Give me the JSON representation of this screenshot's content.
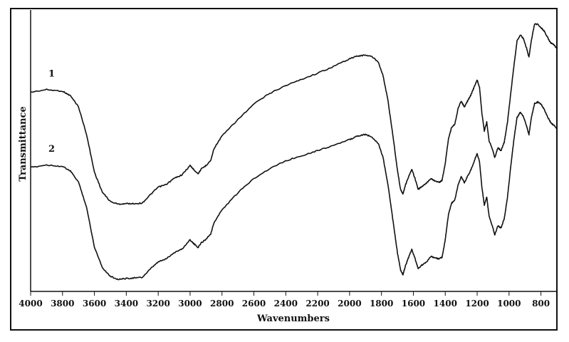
{
  "chart_data": {
    "type": "line",
    "title": "",
    "xlabel": "Wavenumbers",
    "ylabel": "Transmittance",
    "xlim": [
      4000,
      700
    ],
    "x_reversed": true,
    "xticks": [
      4000,
      3800,
      3600,
      3400,
      3200,
      3000,
      2800,
      2600,
      2400,
      2200,
      2000,
      1800,
      1600,
      1400,
      1200,
      1000,
      800
    ],
    "xtick_labels": [
      "4000",
      "3800",
      "3600",
      "3400",
      "3200",
      "3000",
      "2800",
      "2600",
      "2400",
      "2200",
      "2000",
      "1800",
      "1600",
      "1400",
      "1200",
      "1000",
      "800"
    ],
    "ylim": [
      0,
      100
    ],
    "grid": false,
    "legend": "none",
    "series": [
      {
        "name": "1",
        "color": "#111111",
        "points": [
          [
            4000,
            74.2
          ],
          [
            3900,
            75.2
          ],
          [
            3800,
            74.6
          ],
          [
            3750,
            72.8
          ],
          [
            3700,
            68.6
          ],
          [
            3650,
            58
          ],
          [
            3600,
            43.2
          ],
          [
            3550,
            35.4
          ],
          [
            3500,
            31.8
          ],
          [
            3450,
            30.8
          ],
          [
            3400,
            31
          ],
          [
            3350,
            31
          ],
          [
            3300,
            31.2
          ],
          [
            3250,
            34.4
          ],
          [
            3200,
            37.4
          ],
          [
            3150,
            38.4
          ],
          [
            3100,
            40.8
          ],
          [
            3050,
            42.2
          ],
          [
            3000,
            45.8
          ],
          [
            2980,
            44.4
          ],
          [
            2950,
            42.6
          ],
          [
            2930,
            44.4
          ],
          [
            2900,
            45.8
          ],
          [
            2870,
            47.8
          ],
          [
            2850,
            52.4
          ],
          [
            2800,
            57.2
          ],
          [
            2700,
            63.6
          ],
          [
            2600,
            69.6
          ],
          [
            2500,
            73.8
          ],
          [
            2400,
            76.8
          ],
          [
            2300,
            79.2
          ],
          [
            2200,
            81.6
          ],
          [
            2100,
            84.2
          ],
          [
            2000,
            87.2
          ],
          [
            1950,
            88.2
          ],
          [
            1900,
            88.6
          ],
          [
            1860,
            88
          ],
          [
            1820,
            86
          ],
          [
            1790,
            80.6
          ],
          [
            1760,
            71.2
          ],
          [
            1730,
            58.2
          ],
          [
            1700,
            44
          ],
          [
            1680,
            36.4
          ],
          [
            1665,
            34.8
          ],
          [
            1650,
            38.2
          ],
          [
            1630,
            41.4
          ],
          [
            1610,
            44.2
          ],
          [
            1590,
            40.8
          ],
          [
            1570,
            36.6
          ],
          [
            1550,
            37.4
          ],
          [
            1520,
            38.8
          ],
          [
            1490,
            40.8
          ],
          [
            1470,
            40
          ],
          [
            1440,
            39.2
          ],
          [
            1420,
            40
          ],
          [
            1400,
            46.6
          ],
          [
            1380,
            56.2
          ],
          [
            1360,
            60.6
          ],
          [
            1340,
            61.8
          ],
          [
            1320,
            67.8
          ],
          [
            1300,
            70.8
          ],
          [
            1280,
            68.4
          ],
          [
            1260,
            70.8
          ],
          [
            1240,
            73
          ],
          [
            1220,
            76
          ],
          [
            1200,
            79
          ],
          [
            1185,
            76
          ],
          [
            1170,
            66
          ],
          [
            1155,
            59.2
          ],
          [
            1140,
            62.6
          ],
          [
            1125,
            55.4
          ],
          [
            1100,
            51.4
          ],
          [
            1090,
            48.8
          ],
          [
            1070,
            52.6
          ],
          [
            1050,
            51.6
          ],
          [
            1030,
            54.8
          ],
          [
            1010,
            62.6
          ],
          [
            990,
            73.4
          ],
          [
            970,
            84
          ],
          [
            950,
            94
          ],
          [
            930,
            96.4
          ],
          [
            910,
            95
          ],
          [
            890,
            91.2
          ],
          [
            875,
            87.8
          ],
          [
            860,
            94.4
          ],
          [
            840,
            100.6
          ],
          [
            820,
            100.6
          ],
          [
            800,
            99.2
          ],
          [
            780,
            98
          ],
          [
            760,
            95.6
          ],
          [
            740,
            93.4
          ],
          [
            720,
            92.6
          ],
          [
            700,
            91.2
          ]
        ]
      },
      {
        "name": "2",
        "color": "#111111",
        "points": [
          [
            4000,
            45
          ],
          [
            3900,
            46
          ],
          [
            3800,
            45.4
          ],
          [
            3750,
            43.6
          ],
          [
            3700,
            39.4
          ],
          [
            3650,
            29.8
          ],
          [
            3600,
            14.2
          ],
          [
            3550,
            6.2
          ],
          [
            3500,
            2.8
          ],
          [
            3450,
            1.6
          ],
          [
            3400,
            2
          ],
          [
            3350,
            2.2
          ],
          [
            3300,
            2.4
          ],
          [
            3250,
            5.6
          ],
          [
            3200,
            8.4
          ],
          [
            3150,
            9.6
          ],
          [
            3100,
            12
          ],
          [
            3050,
            13.4
          ],
          [
            3000,
            17
          ],
          [
            2980,
            15.6
          ],
          [
            2950,
            14
          ],
          [
            2930,
            15.8
          ],
          [
            2900,
            17.2
          ],
          [
            2870,
            19.4
          ],
          [
            2850,
            23.6
          ],
          [
            2800,
            28.6
          ],
          [
            2700,
            35.2
          ],
          [
            2600,
            40.8
          ],
          [
            2500,
            44.6
          ],
          [
            2400,
            47.6
          ],
          [
            2300,
            49.6
          ],
          [
            2200,
            51.6
          ],
          [
            2100,
            53.6
          ],
          [
            2000,
            55.8
          ],
          [
            1950,
            57.2
          ],
          [
            1900,
            57.8
          ],
          [
            1860,
            56.8
          ],
          [
            1820,
            54.4
          ],
          [
            1790,
            48.8
          ],
          [
            1760,
            38.6
          ],
          [
            1730,
            25.4
          ],
          [
            1700,
            12
          ],
          [
            1680,
            5.2
          ],
          [
            1665,
            3.4
          ],
          [
            1650,
            6.8
          ],
          [
            1630,
            10.2
          ],
          [
            1610,
            13.2
          ],
          [
            1590,
            9.8
          ],
          [
            1570,
            5.8
          ],
          [
            1550,
            7
          ],
          [
            1520,
            8.2
          ],
          [
            1490,
            10.6
          ],
          [
            1470,
            10
          ],
          [
            1440,
            9.6
          ],
          [
            1420,
            10.2
          ],
          [
            1400,
            17
          ],
          [
            1380,
            26.8
          ],
          [
            1360,
            31.2
          ],
          [
            1340,
            32.4
          ],
          [
            1320,
            38.2
          ],
          [
            1300,
            41.4
          ],
          [
            1280,
            39.2
          ],
          [
            1260,
            41.6
          ],
          [
            1240,
            44
          ],
          [
            1220,
            47.2
          ],
          [
            1200,
            50.4
          ],
          [
            1185,
            47.2
          ],
          [
            1170,
            37.2
          ],
          [
            1155,
            30.4
          ],
          [
            1140,
            33.6
          ],
          [
            1125,
            26
          ],
          [
            1100,
            21.4
          ],
          [
            1090,
            18.8
          ],
          [
            1070,
            22.4
          ],
          [
            1050,
            21.6
          ],
          [
            1030,
            25.2
          ],
          [
            1010,
            33.4
          ],
          [
            990,
            45
          ],
          [
            970,
            55.6
          ],
          [
            950,
            64.4
          ],
          [
            930,
            66.4
          ],
          [
            910,
            64.8
          ],
          [
            890,
            61
          ],
          [
            875,
            57.8
          ],
          [
            860,
            64.4
          ],
          [
            840,
            69.8
          ],
          [
            820,
            70.4
          ],
          [
            800,
            69.6
          ],
          [
            780,
            67.6
          ],
          [
            760,
            64.8
          ],
          [
            740,
            62.6
          ],
          [
            720,
            61.4
          ],
          [
            700,
            60
          ]
        ]
      }
    ]
  }
}
